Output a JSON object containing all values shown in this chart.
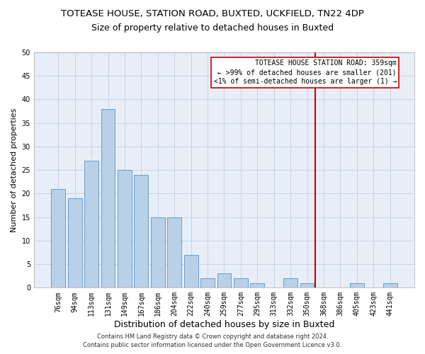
{
  "title": "TOTEASE HOUSE, STATION ROAD, BUXTED, UCKFIELD, TN22 4DP",
  "subtitle": "Size of property relative to detached houses in Buxted",
  "xlabel": "Distribution of detached houses by size in Buxted",
  "ylabel": "Number of detached properties",
  "bar_labels": [
    "76sqm",
    "94sqm",
    "113sqm",
    "131sqm",
    "149sqm",
    "167sqm",
    "186sqm",
    "204sqm",
    "222sqm",
    "240sqm",
    "259sqm",
    "277sqm",
    "295sqm",
    "313sqm",
    "332sqm",
    "350sqm",
    "368sqm",
    "386sqm",
    "405sqm",
    "423sqm",
    "441sqm"
  ],
  "bar_values": [
    21,
    19,
    27,
    38,
    25,
    24,
    15,
    15,
    7,
    2,
    3,
    2,
    1,
    0,
    2,
    1,
    0,
    0,
    1,
    0,
    1
  ],
  "bar_color": "#b8d0e8",
  "bar_edge_color": "#6a9fc8",
  "ylim": [
    0,
    50
  ],
  "yticks": [
    0,
    5,
    10,
    15,
    20,
    25,
    30,
    35,
    40,
    45,
    50
  ],
  "grid_color": "#c8d4e4",
  "background_color": "#e8eef8",
  "red_line_x": 15.5,
  "red_line_color": "#cc0000",
  "annotation_title": "TOTEASE HOUSE STATION ROAD: 359sqm",
  "annotation_line1": "← >99% of detached houses are smaller (201)",
  "annotation_line2": "<1% of semi-detached houses are larger (1) →",
  "footer_line1": "Contains HM Land Registry data © Crown copyright and database right 2024.",
  "footer_line2": "Contains public sector information licensed under the Open Government Licence v3.0.",
  "title_fontsize": 9.5,
  "subtitle_fontsize": 9,
  "xlabel_fontsize": 9,
  "ylabel_fontsize": 8,
  "tick_fontsize": 7,
  "annotation_fontsize": 7,
  "footer_fontsize": 6
}
